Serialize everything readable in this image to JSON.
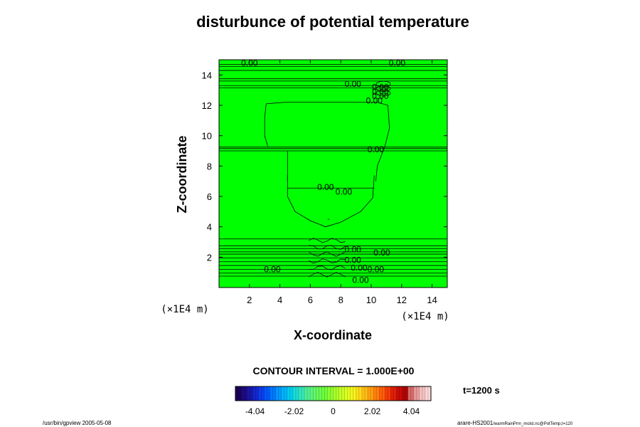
{
  "chart_data": {
    "type": "contour",
    "title": "disturbunce of potential temperature",
    "xlabel": "X-coordinate",
    "ylabel": "Z-coordinate",
    "x_unit": "(×1E4 m)",
    "y_unit": "(×1E4 m)",
    "xlim": [
      0,
      15
    ],
    "ylim": [
      0,
      15
    ],
    "x_ticks": [
      2,
      4,
      6,
      8,
      10,
      12,
      14
    ],
    "y_ticks": [
      2,
      4,
      6,
      8,
      10,
      12,
      14
    ],
    "field_color": "#00ff00",
    "contour_labels": [
      {
        "x": 2.0,
        "z": 14.8,
        "text": "0.00"
      },
      {
        "x": 11.7,
        "z": 14.8,
        "text": "0.00"
      },
      {
        "x": 8.8,
        "z": 13.4,
        "text": "0.00"
      },
      {
        "x": 10.6,
        "z": 13.2,
        "text": "0.00"
      },
      {
        "x": 10.6,
        "z": 12.9,
        "text": "0.00"
      },
      {
        "x": 10.6,
        "z": 12.6,
        "text": "0.00"
      },
      {
        "x": 10.2,
        "z": 12.3,
        "text": "0.00"
      },
      {
        "x": 10.3,
        "z": 9.1,
        "text": "0.00"
      },
      {
        "x": 7.0,
        "z": 6.6,
        "text": "0.00"
      },
      {
        "x": 8.2,
        "z": 6.3,
        "text": "0.00"
      },
      {
        "x": 8.8,
        "z": 2.5,
        "text": "0.00"
      },
      {
        "x": 10.7,
        "z": 2.3,
        "text": "0.00"
      },
      {
        "x": 8.8,
        "z": 1.8,
        "text": "0.00"
      },
      {
        "x": 9.2,
        "z": 1.3,
        "text": "0.00"
      },
      {
        "x": 10.3,
        "z": 1.2,
        "text": "0.00"
      },
      {
        "x": 3.5,
        "z": 1.2,
        "text": "0.00"
      },
      {
        "x": 9.3,
        "z": 0.5,
        "text": "0.00"
      }
    ],
    "min_marker": {
      "x": 7.2,
      "z": 4.5,
      "text": "-"
    },
    "contour_interval_text": "CONTOUR INTERVAL = 1.000E+00",
    "time_text": "t=1200 s",
    "colorbar": {
      "min": -5.05,
      "max": 5.05,
      "tick_values": [
        -4.04,
        -2.02,
        0,
        2.02,
        4.04
      ],
      "tick_labels": [
        "-4.04",
        "-2.02",
        "0",
        "2.02",
        "4.04"
      ],
      "colors": [
        "#1a0057",
        "#1d0a7f",
        "#1a16a6",
        "#1426cc",
        "#0b3de8",
        "#0058ff",
        "#0077ff",
        "#0096ff",
        "#00b4ff",
        "#00ccee",
        "#19dcd8",
        "#35e6b8",
        "#4eee96",
        "#5ff575",
        "#66fa55",
        "#6cff3a",
        "#8cff30",
        "#aaff2a",
        "#c6ff24",
        "#e0ff20",
        "#f6f41c",
        "#ffdc18",
        "#ffbf14",
        "#ffa010",
        "#ff800c",
        "#ff5e0a",
        "#f53c08",
        "#e01e06",
        "#c80c06",
        "#b00606",
        "#d86a6a",
        "#e89a9a",
        "#f5c0c0",
        "#fbd8d8"
      ]
    }
  },
  "footer": {
    "left": "/usr/bin/gpview 2005-05-08",
    "right_main": "arare-HS2001",
    "right_small": "/warmRainPrm_moist.nc@PotTemp,t=120"
  }
}
